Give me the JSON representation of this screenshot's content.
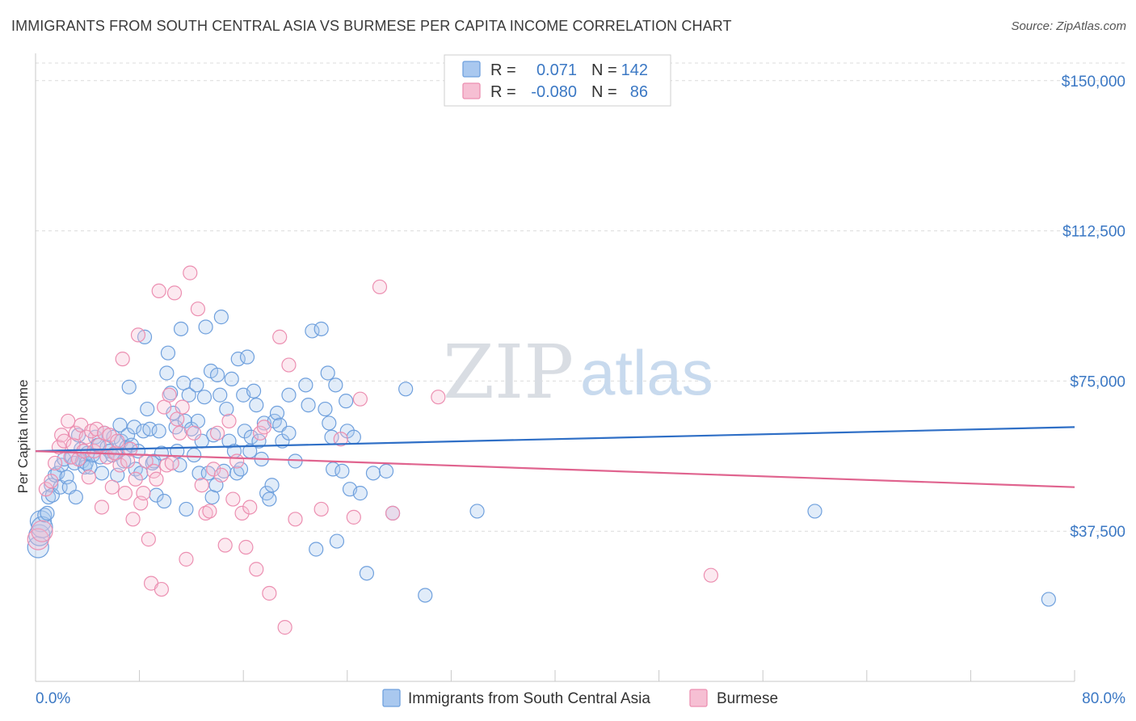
{
  "header": {
    "title": "IMMIGRANTS FROM SOUTH CENTRAL ASIA VS BURMESE PER CAPITA INCOME CORRELATION CHART",
    "source": "Source: ZipAtlas.com"
  },
  "watermark": {
    "zip": "ZIP",
    "atlas": "atlas"
  },
  "colors": {
    "blue": "#6fa0dd",
    "blue_fill": "#a9c8ef",
    "blue_line": "#2f6fc6",
    "pink": "#ec8fb1",
    "pink_fill": "#f6bfd3",
    "pink_line": "#e0648f",
    "axis_text": "#3b78c4",
    "grid": "#d8d8d8"
  },
  "legend_top": {
    "rows": [
      {
        "r_label": "R =",
        "r_value": "0.071",
        "n_label": "N =",
        "n_value": "142"
      },
      {
        "r_label": "R =",
        "r_value": "-0.080",
        "n_label": "N =",
        "n_value": "86"
      }
    ]
  },
  "chart_data": {
    "type": "scatter",
    "ylabel": "Per Capita Income",
    "xlabel": "",
    "xlim": [
      0,
      80
    ],
    "ylim": [
      0,
      155000
    ],
    "x_tick_labels": {
      "left": "0.0%",
      "right": "80.0%"
    },
    "y_ticks": [
      {
        "value": 37500,
        "label": "$37,500"
      },
      {
        "value": 75000,
        "label": "$75,000"
      },
      {
        "value": 112500,
        "label": "$112,500"
      },
      {
        "value": 150000,
        "label": "$150,000"
      }
    ],
    "series": [
      {
        "name": "Immigrants from South Central Asia",
        "color": "blue",
        "trend": {
          "x": [
            0,
            80
          ],
          "y": [
            57500,
            63500
          ]
        },
        "points": [
          [
            0.2,
            33500
          ],
          [
            0.3,
            36500
          ],
          [
            0.4,
            40000
          ],
          [
            0.5,
            38500
          ],
          [
            0.7,
            41500
          ],
          [
            0.9,
            42000
          ],
          [
            1.0,
            46000
          ],
          [
            1.2,
            49000
          ],
          [
            1.3,
            46500
          ],
          [
            1.5,
            51500
          ],
          [
            1.7,
            52000
          ],
          [
            1.9,
            48500
          ],
          [
            2.0,
            54000
          ],
          [
            2.2,
            55500
          ],
          [
            2.4,
            51000
          ],
          [
            2.6,
            48500
          ],
          [
            2.8,
            56000
          ],
          [
            3.0,
            54500
          ],
          [
            3.1,
            46000
          ],
          [
            3.3,
            61500
          ],
          [
            3.5,
            58000
          ],
          [
            3.6,
            55000
          ],
          [
            3.8,
            53500
          ],
          [
            3.9,
            54500
          ],
          [
            4.0,
            57000
          ],
          [
            4.2,
            53500
          ],
          [
            4.4,
            56500
          ],
          [
            4.6,
            61000
          ],
          [
            4.8,
            59000
          ],
          [
            5.0,
            56000
          ],
          [
            5.1,
            52000
          ],
          [
            5.3,
            62000
          ],
          [
            5.5,
            58500
          ],
          [
            5.7,
            57500
          ],
          [
            5.9,
            56500
          ],
          [
            6.0,
            61000
          ],
          [
            6.2,
            57000
          ],
          [
            6.3,
            51500
          ],
          [
            6.5,
            64000
          ],
          [
            6.6,
            60000
          ],
          [
            6.8,
            55000
          ],
          [
            7.0,
            58500
          ],
          [
            7.1,
            61500
          ],
          [
            7.2,
            73500
          ],
          [
            7.4,
            59000
          ],
          [
            7.6,
            63500
          ],
          [
            7.7,
            53000
          ],
          [
            7.9,
            57500
          ],
          [
            8.1,
            52000
          ],
          [
            8.3,
            62500
          ],
          [
            8.4,
            86000
          ],
          [
            8.6,
            68000
          ],
          [
            8.8,
            63000
          ],
          [
            9.0,
            54500
          ],
          [
            9.1,
            55000
          ],
          [
            9.3,
            46500
          ],
          [
            9.5,
            62500
          ],
          [
            9.7,
            57000
          ],
          [
            9.9,
            45000
          ],
          [
            10.1,
            77000
          ],
          [
            10.2,
            82000
          ],
          [
            10.4,
            72000
          ],
          [
            10.6,
            67000
          ],
          [
            10.8,
            63500
          ],
          [
            10.9,
            57500
          ],
          [
            11.1,
            54000
          ],
          [
            11.2,
            88000
          ],
          [
            11.4,
            74500
          ],
          [
            11.5,
            65000
          ],
          [
            11.6,
            43000
          ],
          [
            11.8,
            71500
          ],
          [
            12.0,
            63000
          ],
          [
            12.2,
            56500
          ],
          [
            12.4,
            74000
          ],
          [
            12.5,
            65000
          ],
          [
            12.6,
            52000
          ],
          [
            12.8,
            60000
          ],
          [
            13.0,
            71000
          ],
          [
            13.1,
            88500
          ],
          [
            13.3,
            52000
          ],
          [
            13.5,
            77500
          ],
          [
            13.6,
            46000
          ],
          [
            13.7,
            61500
          ],
          [
            13.9,
            49000
          ],
          [
            14.0,
            76500
          ],
          [
            14.2,
            71500
          ],
          [
            14.3,
            91000
          ],
          [
            14.5,
            52500
          ],
          [
            14.7,
            68000
          ],
          [
            14.9,
            60000
          ],
          [
            15.1,
            75500
          ],
          [
            15.3,
            57500
          ],
          [
            15.5,
            52000
          ],
          [
            15.6,
            80500
          ],
          [
            15.8,
            53000
          ],
          [
            16.0,
            71500
          ],
          [
            16.1,
            62500
          ],
          [
            16.3,
            81000
          ],
          [
            16.5,
            57500
          ],
          [
            16.6,
            61000
          ],
          [
            16.8,
            72500
          ],
          [
            17.0,
            69000
          ],
          [
            17.2,
            60000
          ],
          [
            17.4,
            55500
          ],
          [
            17.6,
            64500
          ],
          [
            17.8,
            47000
          ],
          [
            18.0,
            45500
          ],
          [
            18.2,
            49000
          ],
          [
            18.4,
            65000
          ],
          [
            18.6,
            67000
          ],
          [
            18.8,
            64000
          ],
          [
            19.0,
            60000
          ],
          [
            19.5,
            71500
          ],
          [
            20.0,
            55000
          ],
          [
            20.8,
            74000
          ],
          [
            21.0,
            69000
          ],
          [
            21.3,
            87500
          ],
          [
            21.6,
            33000
          ],
          [
            22.0,
            88000
          ],
          [
            22.3,
            68000
          ],
          [
            22.5,
            77000
          ],
          [
            22.6,
            64500
          ],
          [
            22.8,
            61000
          ],
          [
            22.9,
            53000
          ],
          [
            23.1,
            74000
          ],
          [
            23.2,
            35000
          ],
          [
            23.6,
            52500
          ],
          [
            23.9,
            70000
          ],
          [
            24.0,
            62500
          ],
          [
            24.2,
            48000
          ],
          [
            24.5,
            61000
          ],
          [
            25.0,
            47000
          ],
          [
            25.5,
            27000
          ],
          [
            26.0,
            52000
          ],
          [
            27.0,
            52500
          ],
          [
            27.5,
            42000
          ],
          [
            28.5,
            73000
          ],
          [
            30.0,
            21500
          ],
          [
            34.0,
            42500
          ],
          [
            60.0,
            42500
          ],
          [
            78.0,
            20500
          ],
          [
            19.5,
            62000
          ]
        ]
      },
      {
        "name": "Burmese",
        "color": "pink",
        "trend": {
          "x": [
            0,
            80
          ],
          "y": [
            57500,
            48500
          ]
        },
        "points": [
          [
            0.2,
            35500
          ],
          [
            0.5,
            37500
          ],
          [
            0.8,
            48000
          ],
          [
            1.2,
            50000
          ],
          [
            1.5,
            54500
          ],
          [
            1.8,
            58500
          ],
          [
            2.0,
            61500
          ],
          [
            2.2,
            60000
          ],
          [
            2.5,
            65000
          ],
          [
            2.7,
            56000
          ],
          [
            2.9,
            59000
          ],
          [
            3.1,
            62000
          ],
          [
            3.3,
            55500
          ],
          [
            3.5,
            64000
          ],
          [
            3.7,
            57500
          ],
          [
            3.9,
            61000
          ],
          [
            4.1,
            51000
          ],
          [
            4.3,
            62500
          ],
          [
            4.5,
            57500
          ],
          [
            4.7,
            63000
          ],
          [
            4.9,
            59000
          ],
          [
            5.1,
            43500
          ],
          [
            5.3,
            62000
          ],
          [
            5.5,
            56000
          ],
          [
            5.7,
            61500
          ],
          [
            5.9,
            48500
          ],
          [
            6.1,
            57000
          ],
          [
            6.3,
            60000
          ],
          [
            6.5,
            54000
          ],
          [
            6.7,
            80500
          ],
          [
            6.9,
            47000
          ],
          [
            7.1,
            55000
          ],
          [
            7.3,
            58000
          ],
          [
            7.5,
            40500
          ],
          [
            7.7,
            50500
          ],
          [
            7.9,
            86500
          ],
          [
            8.1,
            44500
          ],
          [
            8.3,
            47000
          ],
          [
            8.5,
            55000
          ],
          [
            8.7,
            35500
          ],
          [
            8.9,
            24500
          ],
          [
            9.1,
            52500
          ],
          [
            9.3,
            50500
          ],
          [
            9.5,
            97500
          ],
          [
            9.7,
            23000
          ],
          [
            9.9,
            68500
          ],
          [
            10.1,
            54000
          ],
          [
            10.3,
            71500
          ],
          [
            10.5,
            54500
          ],
          [
            10.7,
            97000
          ],
          [
            10.9,
            65500
          ],
          [
            11.1,
            62000
          ],
          [
            11.3,
            68500
          ],
          [
            11.6,
            30500
          ],
          [
            11.9,
            102000
          ],
          [
            12.2,
            62000
          ],
          [
            12.5,
            93000
          ],
          [
            12.8,
            49000
          ],
          [
            13.1,
            42000
          ],
          [
            13.4,
            42500
          ],
          [
            13.7,
            53000
          ],
          [
            14.0,
            62000
          ],
          [
            14.3,
            51500
          ],
          [
            14.6,
            34000
          ],
          [
            14.9,
            65000
          ],
          [
            15.2,
            45500
          ],
          [
            15.5,
            55000
          ],
          [
            15.9,
            42000
          ],
          [
            16.2,
            33500
          ],
          [
            16.5,
            43500
          ],
          [
            17.0,
            28000
          ],
          [
            17.3,
            62000
          ],
          [
            17.6,
            63500
          ],
          [
            18.0,
            22000
          ],
          [
            18.8,
            86000
          ],
          [
            19.2,
            13500
          ],
          [
            19.5,
            79000
          ],
          [
            20.0,
            40500
          ],
          [
            22.0,
            43000
          ],
          [
            23.5,
            60500
          ],
          [
            24.5,
            41000
          ],
          [
            25.0,
            70500
          ],
          [
            26.5,
            98500
          ],
          [
            27.5,
            42000
          ],
          [
            31.0,
            71000
          ],
          [
            52.0,
            26500
          ]
        ]
      }
    ]
  },
  "legend_bottom": {
    "items": [
      "Immigrants from South Central Asia",
      "Burmese"
    ]
  }
}
